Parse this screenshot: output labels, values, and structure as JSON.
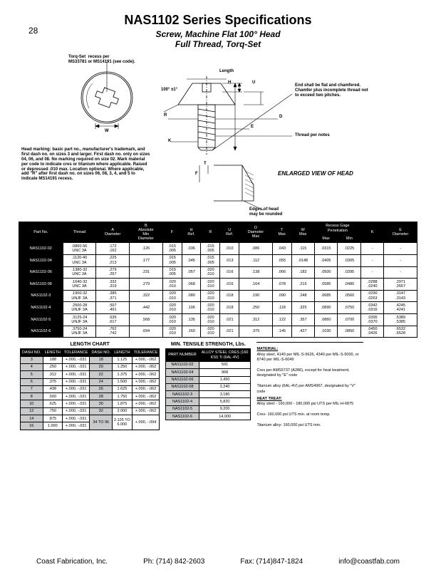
{
  "page_number": "28",
  "title": "NAS1102 Series Specifications",
  "subtitle1": "Screw, Machine Flat 100° Head",
  "subtitle2": "Full Thread, Torq-Set",
  "diagram": {
    "torqset_note": "Torq-Set  recess per\nMS33781 or MS14191 (see code).",
    "length_label": "Length",
    "end_note": "End shall be flat and chamfered.\nChamfer plus incomplete thread not\nto exceed two pitches.",
    "thread_note": "Thread per notes",
    "enlarged_label": "ENLARGED VIEW OF HEAD",
    "edge_note": "Edges of head\nmay be rounded",
    "angle_label": "100° ±1°",
    "head_marking_note": "Head marking: basic part no., manufacturer's trademark, and\nfirst dash no. on sizes 3 and larger. First dash no. only on sizes\n04, 06, and 08. No marking required on size 02. Mark material\nper code to indicate cres or titanium where applicable. Raised\nor depressed .010 max. Location optional. Where applicable,\nadd \"R\" after first dash no. on sizes 06, 08, 3, 4, and 5 to\nindicate MS14191 recess.",
    "dims": {
      "H": "H",
      "U": "U",
      "D": "D",
      "E": "E",
      "K": "K",
      "R": "R",
      "T": "T",
      "F": "F",
      "W": "W"
    }
  },
  "spec_table": {
    "headers": {
      "part_no": "Part No.",
      "thread": "Thread",
      "A": "A\nDiameter",
      "B": "B\nAbsolute\nMin\nDiameter",
      "F": "F",
      "H": "H\nRef.",
      "R": "R",
      "U": "U\nRef.",
      "D": "D\nDiameter\nMax",
      "T": "T\nMax",
      "W": "W\nMax",
      "recess": "Recess Gage\nPenetration",
      "max": "Max",
      "min": "Min",
      "K": "K",
      "E": "E\nDiameter"
    },
    "rows": [
      {
        "pn": "NAS1102-02",
        "thread": ".0860-56\nUNC 3A",
        "A": ".172\n.162",
        "B": ".126",
        "F": ".015\n.005",
        "H": ".036",
        "R": ".015\n.005",
        "U": ".010",
        "D": ".086",
        "T": ".043",
        "W": ".115",
        "rmax": ".0315",
        "rmin": ".0225",
        "K": "-",
        "E": "-"
      },
      {
        "pn": "NAS1102-04",
        "thread": ".1120-40\nUNC 3A",
        "A": ".225\n.213",
        "B": ".177",
        "F": ".015\n.005",
        "H": ".045",
        "R": ".015\n.005",
        "U": ".013",
        "D": ".112",
        "T": ".055",
        "W": ".0148",
        "rmax": ".0405",
        "rmin": ".0305",
        "K": "-",
        "E": "-"
      },
      {
        "pn": "NAS1102-06",
        "thread": ".1380-32\nUNC 3A",
        "A": ".279\n.267",
        "B": ".231",
        "F": ".015\n.005",
        "H": ".057",
        "R": ".020\n.010",
        "U": ".016",
        "D": ".138",
        "T": ".066",
        "W": ".182",
        "rmax": ".0500",
        "rmin": ".0395",
        "K": "-",
        "E": "-"
      },
      {
        "pn": "NAS1102-08",
        "thread": ".1640-32\nUNC 3A",
        "A": ".332\n.319",
        "B": ".279",
        "F": ".020\n.010",
        "H": ".068",
        "R": ".020\n.010",
        "U": ".016",
        "D": ".164",
        "T": ".078",
        "W": ".215",
        "rmax": ".0585",
        "rmin": ".0480",
        "K": ".0288\n.0240",
        "E": ".2971\n.2667"
      },
      {
        "pn": "NAS1102-3",
        "thread": ".1900-32\nUNJF 3A",
        "A": ".385\n.371",
        "B": ".322",
        "F": ".020\n.010",
        "H": ".080",
        "R": ".020\n.010",
        "U": ".018",
        "D": ".190",
        "T": ".090",
        "W": ".248",
        "rmax": ".0685",
        "rmin": ".0560",
        "K": ".0290\n.0263",
        "E": ".3147\n.3143"
      },
      {
        "pn": "NAS1102-4",
        "thread": ".2500-28\nUNJF 3A",
        "A": ".507\n.491",
        "B": ".442",
        "F": ".020\n.010",
        "H": ".106",
        "R": ".020\n.010",
        "U": ".018",
        "D": ".250",
        "T": ".118",
        "W": ".325",
        "rmax": ".0890",
        "rmin": ".0750",
        "K": ".0342\n.0316",
        "E": ".4245\n.4241"
      },
      {
        "pn": "NAS1102-5",
        "thread": ".3125-24\nUNJF 3A",
        "A": ".635\n.617",
        "B": ".568",
        "F": ".020\n.010",
        "H": ".135",
        "R": ".020\n.010",
        "U": ".021",
        "D": ".312",
        "T": ".122",
        "W": ".357",
        "rmax": ".0860",
        "rmin": ".0700",
        "K": ".0395\n.0370",
        "E": ".5389\n.5385"
      },
      {
        "pn": "NAS1102-6",
        "thread": ".3750-24\nUNJF 3A",
        "A": ".762\n.742",
        "B": ".694",
        "F": ".020\n.010",
        "H": ".160",
        "R": ".020\n.010",
        "U": ".021",
        "D": ".375",
        "T": ".145",
        "W": ".427",
        "rmax": ".1030",
        "rmin": ".0850",
        "K": ".0450\n.0426",
        "E": ".6532\n.6528"
      }
    ]
  },
  "length_chart": {
    "title": "LENGTH CHART",
    "headers": {
      "dash": "DASH NO.",
      "len": "LENGTH",
      "tol": "TOLERANCE"
    },
    "left": [
      {
        "d": "3",
        "l": ".188",
        "t": "+.000, -.031"
      },
      {
        "d": "4",
        "l": ".250",
        "t": "+.000, -.031"
      },
      {
        "d": "5",
        "l": ".312",
        "t": "+.000, -.031"
      },
      {
        "d": "6",
        "l": ".375",
        "t": "+.000, -.031"
      },
      {
        "d": "7",
        "l": ".438",
        "t": "+.000, -.031"
      },
      {
        "d": "8",
        "l": ".500",
        "t": "+.000, -.031"
      },
      {
        "d": "10",
        "l": ".625",
        "t": "+.000, -.031"
      },
      {
        "d": "12",
        "l": ".750",
        "t": "+.000, -.031"
      },
      {
        "d": "14",
        "l": ".875",
        "t": "+.000, -.031"
      },
      {
        "d": "16",
        "l": "1.000",
        "t": "+.000, -.031"
      }
    ],
    "right": [
      {
        "d": "18",
        "l": "1.125",
        "t": "+.000, -.062"
      },
      {
        "d": "20",
        "l": "1.250",
        "t": "+.000, -.062"
      },
      {
        "d": "22",
        "l": "1.375",
        "t": "+.000, -.062"
      },
      {
        "d": "24",
        "l": "1.500",
        "t": "+.000, -.062"
      },
      {
        "d": "26",
        "l": "1.625",
        "t": "+.000, -.062"
      },
      {
        "d": "28",
        "l": "1.750",
        "t": "+.000, -.062"
      },
      {
        "d": "30",
        "l": "1.875",
        "t": "+.000, -.062"
      },
      {
        "d": "32",
        "l": "2.000",
        "t": "+.000, -.062"
      },
      {
        "d": "34 TO 96",
        "l": "2.125 TO\n6.000",
        "t": "+.000, -.094"
      }
    ]
  },
  "tensile": {
    "title": "MIN. TENSILE STRENGTH, Lbs.",
    "headers": {
      "pn": "PART NUMBER",
      "alloy": "ALLOY STEEL CRES (160\nKSI) Ti (6AL-4V)"
    },
    "rows": [
      {
        "p": "NAS1102-02",
        "v": "591"
      },
      {
        "p": "NAS1102-04",
        "v": "968"
      },
      {
        "p": "NAS1102-06",
        "v": "1,450"
      },
      {
        "p": "NAS1102-08",
        "v": "2,240"
      },
      {
        "p": "NAS1102-3",
        "v": "3,180"
      },
      {
        "p": "NAS1102-4",
        "v": "5,820"
      },
      {
        "p": "NAS1102-5",
        "v": "9,200"
      },
      {
        "p": "NAS1102-6",
        "v": "14,000"
      }
    ]
  },
  "material": {
    "hd1": "MATERIAL:",
    "m1": "Alloy steel, 4140 per MIL-S-5626, 4340 per MIL-S-5000, or 8740 per MIL-S-6049",
    "m2": "Cres per AMS5737 (A286), except for heat treatment, designated by \"E\" code",
    "m3": "Titanium alloy (6AL-4V) per AMS4967, designated by \"V\" code",
    "hd2": "HEAT TREAT:",
    "h1": "Alloy steel - 160,000 - 180,000 psi UTS per MIL-H-6875",
    "h2": "Cres- 160,000 psi UTS min. at room temp.",
    "h3": "Titanium alloy- 160,000 psi UTS min."
  },
  "footer": {
    "company": "Coast Fabrication, Inc.",
    "ph": "Ph: (714) 842-2603",
    "fax": "Fax: (714)847-1824",
    "email": "info@coastfab.com"
  }
}
